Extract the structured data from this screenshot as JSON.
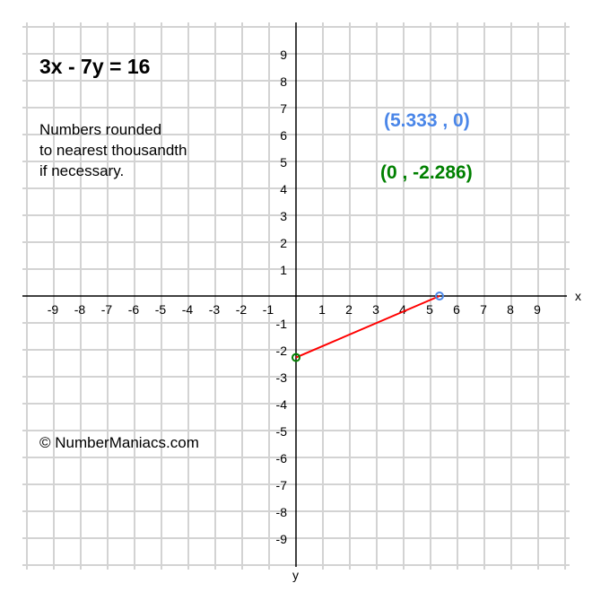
{
  "title": "3x - 7y = 16",
  "note": "Numbers rounded\nto nearest thousandth\nif necessary.",
  "copyright": "© NumberManiacs.com",
  "colors": {
    "grid": "#d3d3d3",
    "axis": "#000000",
    "line": "#ff0000",
    "x_intercept": "#4a86e8",
    "y_intercept": "#008000"
  },
  "chart_data": {
    "type": "line",
    "equation": "3x - 7y = 16",
    "xlabel": "x",
    "ylabel": "y",
    "xlim": [
      -10,
      10
    ],
    "ylim": [
      -10,
      10
    ],
    "grid": true,
    "x_ticks": [
      -9,
      -8,
      -7,
      -6,
      -5,
      -4,
      -3,
      -2,
      -1,
      1,
      2,
      3,
      4,
      5,
      6,
      7,
      8,
      9
    ],
    "y_ticks": [
      9,
      8,
      7,
      6,
      5,
      4,
      3,
      2,
      1,
      -1,
      -2,
      -3,
      -4,
      -5,
      -6,
      -7,
      -8,
      -9
    ],
    "segment": [
      {
        "x": 0,
        "y": -2.286
      },
      {
        "x": 5.333,
        "y": 0
      }
    ],
    "x_intercept": {
      "x": 5.333,
      "y": 0,
      "label": "(5.333 , 0)"
    },
    "y_intercept": {
      "x": 0,
      "y": -2.286,
      "label": "(0 , -2.286)"
    }
  }
}
